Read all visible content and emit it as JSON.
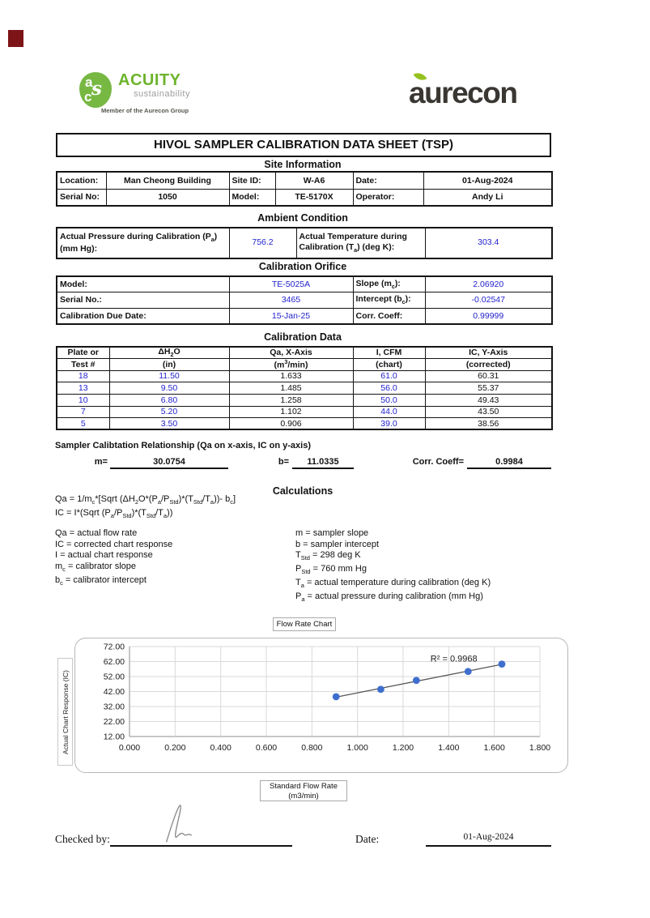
{
  "colors": {
    "value_blue": "#2222cc",
    "acuity_green": "#6db42c",
    "aurecon_gray": "#3a3733",
    "leaf_green": "#95c11f",
    "point_blue": "#3f6fce",
    "trendline_gray": "#595959"
  },
  "logos": {
    "acuity_name": "ACUITY",
    "acuity_sub": "sustainability",
    "acuity_tagline": "Member of the Aurecon Group",
    "monogram": {
      "a": "a",
      "s": "s",
      "c": "c"
    },
    "aurecon_name": "aurecon"
  },
  "title": "HIVOL SAMPLER CALIBRATION  DATA SHEET (TSP)",
  "site": {
    "heading": "Site Information",
    "rows": [
      [
        {
          "label": "Location:",
          "value": "Man Cheong Building"
        },
        {
          "label": "Site ID:",
          "value": "W-A6"
        },
        {
          "label": "Date:",
          "value": "01-Aug-2024"
        }
      ],
      [
        {
          "label": "Serial No:",
          "value": "1050"
        },
        {
          "label": "Model:",
          "value": "TE-5170X"
        },
        {
          "label": "Operator:",
          "value": "Andy Li"
        }
      ]
    ]
  },
  "ambient": {
    "heading": "Ambient Condition",
    "pressure_label": [
      {
        "t": "Actual Pressure during Calibration (P"
      },
      {
        "t": "a",
        "m": "sub"
      },
      {
        "t": ") (mm Hg):"
      }
    ],
    "pressure_value": "756.2",
    "temperature_label": [
      {
        "t": "Actual Temperature during Calibration (T"
      },
      {
        "t": "a",
        "m": "sub"
      },
      {
        "t": ") (deg K):"
      }
    ],
    "temperature_value": "303.4"
  },
  "orifice": {
    "heading": "Calibration Orifice",
    "rows": [
      {
        "label": "Model:",
        "value": "TE-5025A",
        "label2": [
          {
            "t": "Slope (m"
          },
          {
            "t": "c",
            "m": "sub"
          },
          {
            "t": "):"
          }
        ],
        "value2": "2.06920"
      },
      {
        "label": "Serial No.:",
        "value": "3465",
        "label2": [
          {
            "t": "Intercept (b"
          },
          {
            "t": "c",
            "m": "sub"
          },
          {
            "t": "):"
          }
        ],
        "value2": "-0.02547"
      },
      {
        "label": "Calibration Due Date:",
        "value": "15-Jan-25",
        "label2": [
          {
            "t": "Corr. Coeff:"
          }
        ],
        "value2": "0.99999"
      }
    ]
  },
  "caldata": {
    "heading": "Calibration Data",
    "header_row1": {
      "c1": "Plate or",
      "c2": [
        {
          "t": "ΔH"
        },
        {
          "t": "2",
          "m": "sub"
        },
        {
          "t": "O"
        }
      ],
      "c3": "Qa, X-Axis",
      "c4": "I, CFM",
      "c5": "IC, Y-Axis"
    },
    "header_row2": {
      "c1": "Test #",
      "c2": "(in)",
      "c3": [
        {
          "t": "(m"
        },
        {
          "t": "3",
          "m": "sup"
        },
        {
          "t": "/min)"
        }
      ],
      "c4": "(chart)",
      "c5": "(corrected)"
    },
    "rows": [
      [
        "18",
        "11.50",
        "1.633",
        "61.0",
        "60.31"
      ],
      [
        "13",
        "9.50",
        "1.485",
        "56.0",
        "55.37"
      ],
      [
        "10",
        "6.80",
        "1.258",
        "50.0",
        "49.43"
      ],
      [
        "7",
        "5.20",
        "1.102",
        "44.0",
        "43.50"
      ],
      [
        "5",
        "3.50",
        "0.906",
        "39.0",
        "38.56"
      ]
    ]
  },
  "relationship": {
    "heading": "Sampler Calibtation Relationship (Qa on x-axis, IC on y-axis)",
    "m_label": "m=",
    "m_value": "30.0754",
    "b_label": "b=",
    "b_value": "11.0335",
    "corr_label": "Corr. Coeff=",
    "corr_value": "0.9984"
  },
  "calculations": {
    "heading": "Calculations",
    "formula1": [
      {
        "t": "Qa = 1/m"
      },
      {
        "t": "c",
        "m": "sub"
      },
      {
        "t": "*[Sqrt (ΔH"
      },
      {
        "t": "2",
        "m": "sub"
      },
      {
        "t": "O*(P"
      },
      {
        "t": "a",
        "m": "sub"
      },
      {
        "t": "/P"
      },
      {
        "t": "Std",
        "m": "sub"
      },
      {
        "t": ")*(T"
      },
      {
        "t": "Std",
        "m": "sub"
      },
      {
        "t": "/T"
      },
      {
        "t": "a",
        "m": "sub"
      },
      {
        "t": "))- b"
      },
      {
        "t": "c",
        "m": "sub"
      },
      {
        "t": "]"
      }
    ],
    "formula2": [
      {
        "t": "IC = I*(Sqrt (P"
      },
      {
        "t": "a",
        "m": "sub"
      },
      {
        "t": "/P"
      },
      {
        "t": "Std",
        "m": "sub"
      },
      {
        "t": ")*(T"
      },
      {
        "t": "Std",
        "m": "sub"
      },
      {
        "t": "/T"
      },
      {
        "t": "a",
        "m": "sub"
      },
      {
        "t": "))"
      }
    ],
    "left_defs": [
      [
        {
          "t": "Qa = actual flow rate"
        }
      ],
      [
        {
          "t": "IC = corrected chart response"
        }
      ],
      [
        {
          "t": "I = actual chart response"
        }
      ],
      [
        {
          "t": "m"
        },
        {
          "t": "c",
          "m": "sub"
        },
        {
          "t": "  = calibrator slope"
        }
      ],
      [
        {
          "t": "b"
        },
        {
          "t": "c",
          "m": "sub"
        },
        {
          "t": "  = calibrator intercept"
        }
      ]
    ],
    "right_defs": [
      [
        {
          "t": "m = sampler slope"
        }
      ],
      [
        {
          "t": "b  = sampler intercept"
        }
      ],
      [
        {
          "t": "T"
        },
        {
          "t": "Std",
          "m": "sub"
        },
        {
          "t": " = 298 deg K"
        }
      ],
      [
        {
          "t": "P"
        },
        {
          "t": "Std",
          "m": "sub"
        },
        {
          "t": " = 760 mm Hg"
        }
      ],
      [
        {
          "t": "T"
        },
        {
          "t": "a",
          "m": "sub"
        },
        {
          "t": " = actual temperature during calibration (deg K)"
        }
      ],
      [
        {
          "t": "P"
        },
        {
          "t": "a",
          "m": "sub"
        },
        {
          "t": " = actual pressure during calibration (mm Hg)"
        }
      ]
    ]
  },
  "chart": {
    "title": "Flow Rate Chart",
    "ylabel": "Actual Chart Response (IC)",
    "xlabel_line1": "Standard Flow Rate",
    "xlabel_line2": "(m3/min)"
  },
  "chart_data": {
    "type": "scatter",
    "title": "Flow Rate Chart",
    "xlabel": "Standard Flow Rate (m3/min)",
    "ylabel": "Actual Chart Response (IC)",
    "x": [
      0.906,
      1.102,
      1.258,
      1.485,
      1.633
    ],
    "y": [
      38.56,
      43.5,
      49.43,
      55.37,
      60.31
    ],
    "trendline": {
      "slope": 30.0754,
      "intercept": 11.0335,
      "r2_label": "R² = 0.9968"
    },
    "xlim": [
      0,
      1.8
    ],
    "ylim": [
      12,
      72
    ],
    "x_ticks": [
      "0.000",
      "0.200",
      "0.400",
      "0.600",
      "0.800",
      "1.000",
      "1.200",
      "1.400",
      "1.600",
      "1.800"
    ],
    "y_ticks": [
      "72.00",
      "62.00",
      "52.00",
      "42.00",
      "32.00",
      "22.00",
      "12.00"
    ],
    "grid": true,
    "legend": "none",
    "point_color": "#3f6fce",
    "line_color": "#595959"
  },
  "footer": {
    "checked_by_label": "Checked by:",
    "date_label": "Date:",
    "date_value": "01-Aug-2024"
  }
}
